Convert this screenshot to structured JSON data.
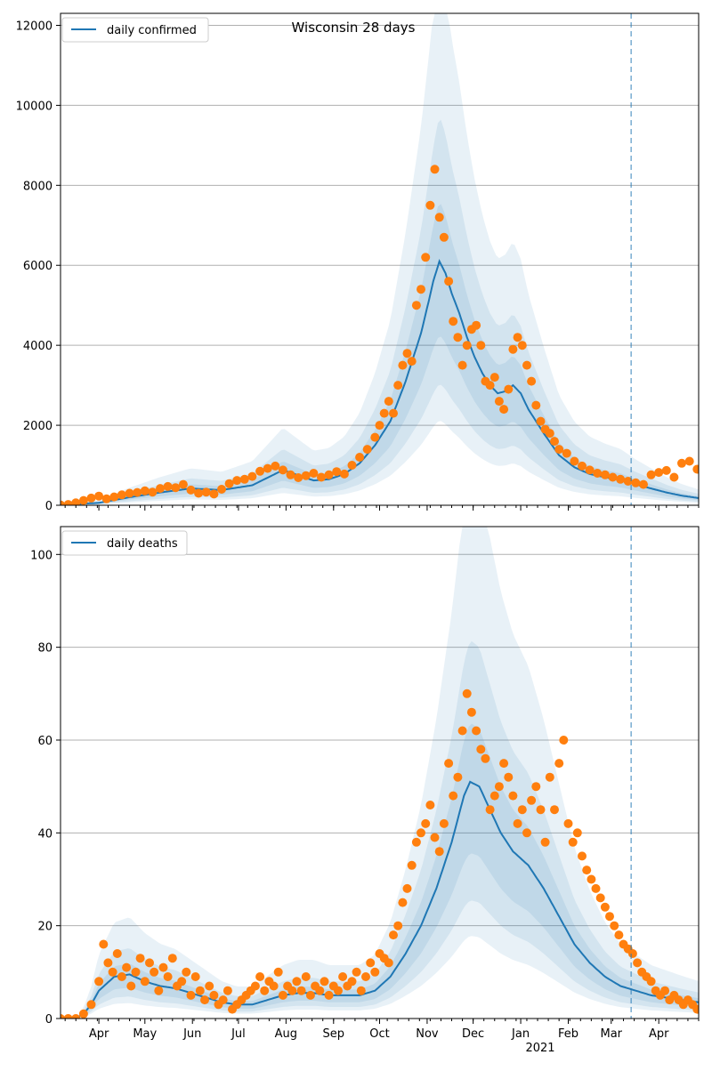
{
  "figure": {
    "title": "Wisconsin 28 days"
  },
  "colors": {
    "line": "#1f77b4",
    "band": "#1f77b4",
    "points": "#ff7f0e",
    "grid": "#b0b0b0",
    "vline": "#1f77b4"
  },
  "x_axis": {
    "range_days": [
      -25,
      391
    ],
    "month_ticks": [
      {
        "label": "Apr",
        "day": 0
      },
      {
        "label": "May",
        "day": 30
      },
      {
        "label": "Jun",
        "day": 61
      },
      {
        "label": "Jul",
        "day": 91
      },
      {
        "label": "Aug",
        "day": 122
      },
      {
        "label": "Sep",
        "day": 153
      },
      {
        "label": "Oct",
        "day": 183
      },
      {
        "label": "Nov",
        "day": 214
      },
      {
        "label": "Dec",
        "day": 244
      },
      {
        "label": "Jan",
        "day": 275
      },
      {
        "label": "Feb",
        "day": 306
      },
      {
        "label": "Mar",
        "day": 334
      },
      {
        "label": "Apr",
        "day": 365
      }
    ],
    "year_label": "2021",
    "forecast_start_day": 347
  },
  "chart_data": [
    {
      "type": "line",
      "legend": "daily confirmed",
      "legend_loc": "upper left",
      "grid": "horizontal",
      "ylim": [
        0,
        12300
      ],
      "yticks": [
        0,
        2000,
        4000,
        6000,
        8000,
        10000,
        12000
      ],
      "model_curve": {
        "x": [
          -25,
          0,
          20,
          40,
          60,
          80,
          100,
          120,
          140,
          150,
          160,
          170,
          180,
          190,
          200,
          210,
          215,
          218,
          222,
          226,
          230,
          235,
          240,
          245,
          250,
          255,
          260,
          265,
          270,
          275,
          280,
          290,
          300,
          310,
          320,
          330,
          340,
          350,
          360,
          370,
          380,
          391
        ],
        "y": [
          10,
          60,
          200,
          320,
          420,
          380,
          500,
          880,
          620,
          650,
          780,
          1050,
          1500,
          2100,
          3100,
          4300,
          5100,
          5600,
          6100,
          5800,
          5300,
          4800,
          4200,
          3700,
          3300,
          3000,
          2800,
          2850,
          3000,
          2800,
          2400,
          1800,
          1250,
          950,
          780,
          700,
          640,
          520,
          420,
          320,
          240,
          180
        ]
      },
      "uncertainty_band_scale": [
        0.35,
        2.2
      ],
      "observed_points": {
        "x": [
          -25,
          -20,
          -15,
          -10,
          -5,
          0,
          5,
          10,
          15,
          20,
          25,
          30,
          35,
          40,
          45,
          50,
          55,
          60,
          65,
          70,
          75,
          80,
          85,
          90,
          95,
          100,
          105,
          110,
          115,
          120,
          125,
          130,
          135,
          140,
          145,
          150,
          155,
          160,
          165,
          170,
          175,
          180,
          183,
          186,
          189,
          192,
          195,
          198,
          201,
          204,
          207,
          210,
          213,
          216,
          219,
          222,
          225,
          228,
          231,
          234,
          237,
          240,
          243,
          246,
          249,
          252,
          255,
          258,
          261,
          264,
          267,
          270,
          273,
          276,
          279,
          282,
          285,
          288,
          291,
          294,
          297,
          300,
          305,
          310,
          315,
          320,
          325,
          330,
          335,
          340,
          345,
          350,
          355,
          360,
          365,
          370,
          375,
          380,
          385,
          390
        ],
        "y": [
          10,
          20,
          60,
          120,
          180,
          230,
          160,
          210,
          260,
          300,
          320,
          360,
          330,
          420,
          470,
          440,
          520,
          380,
          300,
          330,
          280,
          400,
          540,
          620,
          650,
          720,
          850,
          920,
          980,
          880,
          760,
          690,
          740,
          800,
          700,
          760,
          840,
          780,
          1000,
          1200,
          1400,
          1700,
          2000,
          2300,
          2600,
          2300,
          3000,
          3500,
          3800,
          3600,
          5000,
          5400,
          6200,
          7500,
          8400,
          7200,
          6700,
          5600,
          4600,
          4200,
          3500,
          4000,
          4400,
          4500,
          4000,
          3100,
          3000,
          3200,
          2600,
          2400,
          2900,
          3900,
          4200,
          4000,
          3500,
          3100,
          2500,
          2100,
          1900,
          1800,
          1600,
          1400,
          1300,
          1100,
          980,
          880,
          800,
          760,
          700,
          650,
          600,
          560,
          520,
          760,
          820,
          870,
          700,
          1050,
          1100,
          900
        ]
      }
    },
    {
      "type": "line",
      "legend": "daily deaths",
      "legend_loc": "upper left",
      "grid": "horizontal",
      "ylim": [
        0,
        106
      ],
      "yticks": [
        0,
        20,
        40,
        60,
        80,
        100
      ],
      "model_curve": {
        "x": [
          -25,
          -15,
          -10,
          -5,
          0,
          10,
          20,
          30,
          40,
          50,
          60,
          70,
          80,
          90,
          100,
          110,
          120,
          130,
          140,
          150,
          160,
          170,
          180,
          190,
          200,
          210,
          220,
          230,
          238,
          242,
          248,
          255,
          262,
          270,
          280,
          290,
          300,
          310,
          320,
          330,
          340,
          350,
          360,
          370,
          380,
          391
        ],
        "y": [
          0,
          0,
          1,
          3,
          6,
          9,
          9.5,
          8,
          7,
          6.5,
          5.5,
          4.5,
          3.5,
          3,
          3,
          4,
          5,
          5.5,
          5.5,
          5,
          5,
          5,
          6,
          9,
          14,
          20,
          28,
          38,
          48,
          51,
          50,
          45,
          40,
          36,
          33,
          28,
          22,
          16,
          12,
          9,
          7,
          6,
          5,
          4.5,
          4,
          3.5
        ]
      },
      "uncertainty_band_scale": [
        0.35,
        2.3
      ],
      "observed_points": {
        "x": [
          -25,
          -20,
          -15,
          -10,
          -5,
          0,
          3,
          6,
          9,
          12,
          15,
          18,
          21,
          24,
          27,
          30,
          33,
          36,
          39,
          42,
          45,
          48,
          51,
          54,
          57,
          60,
          63,
          66,
          69,
          72,
          75,
          78,
          81,
          84,
          87,
          90,
          93,
          96,
          99,
          102,
          105,
          108,
          111,
          114,
          117,
          120,
          123,
          126,
          129,
          132,
          135,
          138,
          141,
          144,
          147,
          150,
          153,
          156,
          159,
          162,
          165,
          168,
          171,
          174,
          177,
          180,
          183,
          186,
          189,
          192,
          195,
          198,
          201,
          204,
          207,
          210,
          213,
          216,
          219,
          222,
          225,
          228,
          231,
          234,
          237,
          240,
          243,
          246,
          249,
          252,
          255,
          258,
          261,
          264,
          267,
          270,
          273,
          276,
          279,
          282,
          285,
          288,
          291,
          294,
          297,
          300,
          303,
          306,
          309,
          312,
          315,
          318,
          321,
          324,
          327,
          330,
          333,
          336,
          339,
          342,
          345,
          348,
          351,
          354,
          357,
          360,
          363,
          366,
          369,
          372,
          375,
          378,
          381,
          384,
          387,
          390
        ],
        "y": [
          0,
          0,
          0,
          1,
          3,
          8,
          16,
          12,
          10,
          14,
          9,
          11,
          7,
          10,
          13,
          8,
          12,
          10,
          6,
          11,
          9,
          13,
          7,
          8,
          10,
          5,
          9,
          6,
          4,
          7,
          5,
          3,
          4,
          6,
          2,
          3,
          4,
          5,
          6,
          7,
          9,
          6,
          8,
          7,
          10,
          5,
          7,
          6,
          8,
          6,
          9,
          5,
          7,
          6,
          8,
          5,
          7,
          6,
          9,
          7,
          8,
          10,
          6,
          9,
          12,
          10,
          14,
          13,
          12,
          18,
          20,
          25,
          28,
          33,
          38,
          40,
          42,
          46,
          39,
          36,
          42,
          55,
          48,
          52,
          62,
          70,
          66,
          62,
          58,
          56,
          45,
          48,
          50,
          55,
          52,
          48,
          42,
          45,
          40,
          47,
          50,
          45,
          38,
          52,
          45,
          55,
          60,
          42,
          38,
          40,
          35,
          32,
          30,
          28,
          26,
          24,
          22,
          20,
          18,
          16,
          15,
          14,
          12,
          10,
          9,
          8,
          6,
          5,
          6,
          4,
          5,
          4,
          3,
          4,
          3,
          2
        ]
      }
    }
  ]
}
